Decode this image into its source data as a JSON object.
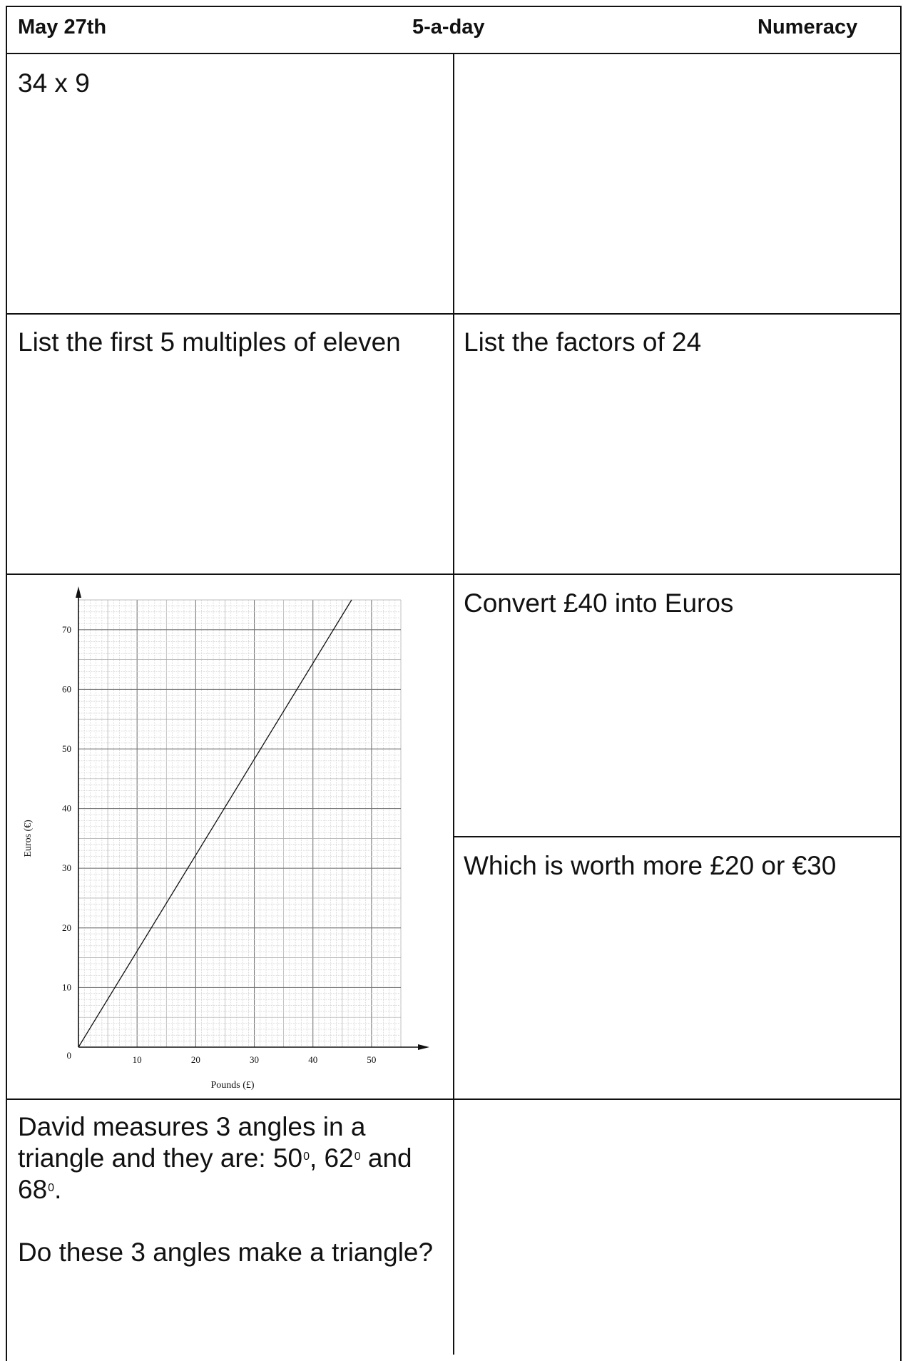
{
  "header": {
    "date": "May 27th",
    "title": "5-a-day",
    "subject": "Numeracy"
  },
  "questions": {
    "q1": "34 x 9",
    "q2": "List the first 5 multiples of eleven",
    "q3": "List the factors of 24",
    "q4": "Convert £40 into Euros",
    "q5": "Which is worth more £20 or €30",
    "q6": {
      "line1": "David measures 3 angles in a",
      "line2_pre": "triangle and they are: 50",
      "sup1": "0",
      "sep1": ", 62",
      "sup2": "0",
      "sep2": " and",
      "line3_pre": "68",
      "sup3": "0",
      "line3_post": ".",
      "line4": "Do these 3 angles make a triangle?"
    }
  },
  "chart_data": {
    "type": "line",
    "title": "",
    "xlabel": "Pounds (£)",
    "ylabel": "Euros (€)",
    "origin_label": "0",
    "xlim": [
      0,
      55
    ],
    "ylim": [
      0,
      75
    ],
    "x_ticks": [
      "10",
      "20",
      "30",
      "40",
      "50"
    ],
    "y_ticks": [
      "10",
      "20",
      "30",
      "40",
      "50",
      "60",
      "70"
    ],
    "grid": true,
    "series": [
      {
        "x": [
          0,
          46.6
        ],
        "y": [
          0,
          75
        ]
      }
    ]
  }
}
